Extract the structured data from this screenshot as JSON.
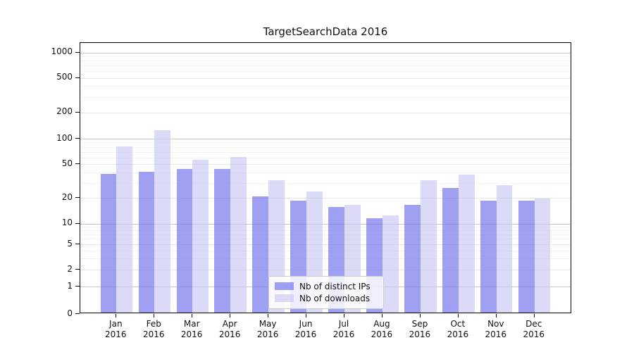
{
  "title": "TargetSearchData 2016",
  "chart_data": {
    "type": "bar",
    "title": "TargetSearchData 2016",
    "categories": [
      "Jan 2016",
      "Feb 2016",
      "Mar 2016",
      "Apr 2016",
      "May 2016",
      "Jun 2016",
      "Jul 2016",
      "Aug 2016",
      "Sep 2016",
      "Oct 2016",
      "Nov 2016",
      "Dec 2016"
    ],
    "series": [
      {
        "name": "Nb of distinct IPs",
        "color": "rgba(124,124,238,0.72)",
        "values": [
          37,
          39,
          42,
          42,
          20,
          18,
          15,
          11,
          16,
          25,
          18,
          18
        ]
      },
      {
        "name": "Nb of downloads",
        "color": "rgba(197,197,244,0.62)",
        "values": [
          78,
          120,
          54,
          58,
          31,
          23,
          16,
          12,
          31,
          36,
          27,
          19
        ]
      }
    ],
    "xlabel": "",
    "ylabel": "",
    "yscale": "symlog",
    "yticks": [
      0,
      1,
      2,
      5,
      10,
      20,
      50,
      100,
      200,
      500,
      1000
    ],
    "ylim": [
      0,
      1150
    ],
    "grid": true,
    "legend_position": "lower center"
  },
  "colors": {
    "grid_major": "#c6c6c6",
    "grid_medium": "#e6e6e6",
    "grid_minor": "#f2f2f2",
    "spine": "#000000",
    "text": "#111111"
  }
}
